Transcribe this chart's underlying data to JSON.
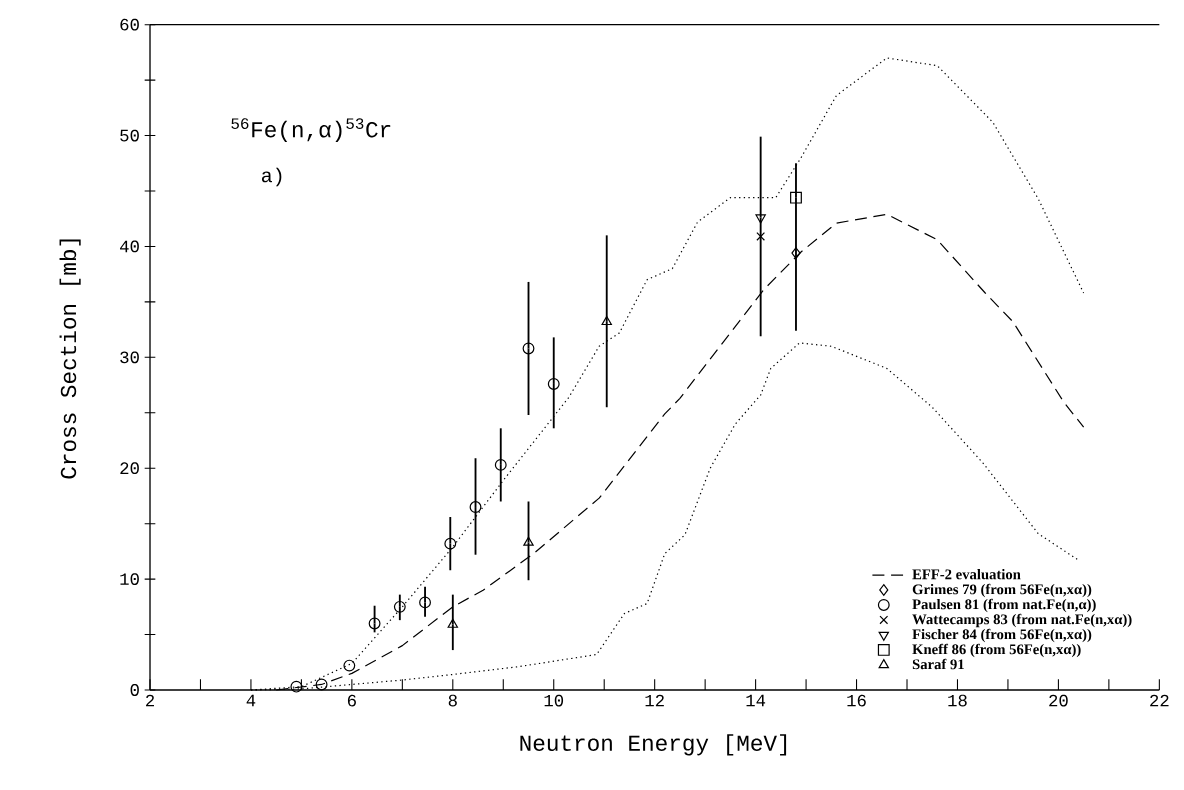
{
  "chart_data": {
    "type": "line",
    "xlabel": "Neutron Energy [MeV]",
    "ylabel": "Cross Section [mb]",
    "xlim": [
      2,
      22
    ],
    "ylim": [
      0,
      60
    ],
    "xticks": [
      2,
      {
        "value": 3,
        "label": null
      },
      4,
      {
        "value": 5,
        "label": null
      },
      6,
      {
        "value": 7,
        "label": null
      },
      8,
      {
        "value": 9,
        "label": null
      },
      10,
      {
        "value": 11,
        "label": null
      },
      12,
      {
        "value": 13,
        "label": null
      },
      14,
      {
        "value": 15,
        "label": null
      },
      16,
      {
        "value": 17,
        "label": null
      },
      18,
      {
        "value": 19,
        "label": null
      },
      20,
      {
        "value": 21,
        "label": null
      },
      22
    ],
    "yticks": [
      0,
      {
        "value": 5,
        "label": null
      },
      10,
      {
        "value": 15,
        "label": null
      },
      20,
      {
        "value": 25,
        "label": null
      },
      30,
      {
        "value": 35,
        "label": null
      },
      40,
      {
        "value": 45,
        "label": null
      },
      50,
      {
        "value": 55,
        "label": null
      },
      60
    ],
    "legend": "bottom right",
    "annotations": [
      "$^{56}$Fe(n,α)$^{53}$Cr",
      "a)"
    ],
    "series": [
      {
        "name": "EFF-2 evaluation",
        "color": "#000000",
        "line_style": "dashed",
        "x": [
          4.5,
          5.4,
          6,
          7,
          8,
          8.6,
          9.6,
          10.9,
          12.2,
          12.5,
          14.16,
          14.9,
          15.6,
          16.6,
          17.6,
          18.55,
          19.1,
          20.1,
          20.5
        ],
        "values": [
          0,
          0.5,
          1.5,
          4,
          7.5,
          9,
          12.3,
          17.3,
          24.9,
          26.3,
          36.1,
          39.5,
          42.1,
          42.9,
          40.6,
          35.8,
          33.2,
          26,
          23.7
        ]
      },
      {
        "color": "#000000",
        "line_style": "dotted",
        "x": [
          4,
          5,
          6,
          7,
          8,
          9,
          10.3,
          10.9,
          11.3,
          11.85,
          12.35,
          12.85,
          13.5,
          14.4,
          14.9,
          15.6,
          16.6,
          17.6,
          18.7,
          19.6,
          20.5
        ],
        "values": [
          0,
          0.3,
          2.4,
          7.5,
          12.9,
          18.9,
          26.4,
          31,
          32.2,
          37,
          38,
          42.2,
          44.4,
          44.4,
          48,
          53.6,
          57,
          56.3,
          51.2,
          44.3,
          35.8
        ]
      },
      {
        "color": "#000000",
        "line_style": "dotted",
        "x": [
          4,
          5,
          6,
          7,
          8,
          9.3,
          10.85,
          11.4,
          11.85,
          12.2,
          12.6,
          13.1,
          13.6,
          14.1,
          14.3,
          14.87,
          15.5,
          16.6,
          17.5,
          18.5,
          19.6,
          20.4
        ],
        "values": [
          0,
          0.1,
          0.5,
          0.9,
          1.4,
          2.1,
          3.2,
          6.9,
          7.8,
          12.3,
          14,
          20,
          24,
          26.6,
          29,
          31.3,
          31,
          29,
          25.5,
          20.5,
          14.1,
          11.7
        ]
      },
      {
        "type": "scatter",
        "name": "Grimes 79 (from 56Fe(n,xα))",
        "color": "#000000",
        "marker": "diamond",
        "x": [
          14.8
        ],
        "values": [
          39.4
        ]
      },
      {
        "type": "scatter",
        "name": "Paulsen 81 (from nat.Fe(n,α))",
        "color": "#000000",
        "marker": "circle",
        "x": [
          4.9,
          5.4,
          5.95,
          6.45,
          6.95,
          7.45,
          7.95,
          8.45,
          8.95,
          9.5,
          10
        ],
        "values": [
          0.3,
          0.5,
          2.2,
          6,
          7.5,
          7.9,
          13.2,
          16.5,
          20.3,
          30.8,
          27.6
        ],
        "errors": [
          null,
          null,
          null,
          [
            5.2,
            7.6
          ],
          [
            6.3,
            8.6
          ],
          [
            6.6,
            9.3
          ],
          [
            10.8,
            15.6
          ],
          [
            12.2,
            20.9
          ],
          [
            17,
            23.6
          ],
          [
            24.8,
            36.8
          ],
          [
            23.6,
            31.8
          ]
        ]
      },
      {
        "type": "scatter",
        "name": "Wattecamps 83 (from nat.Fe(n,xα))",
        "color": "#000000",
        "marker": "cross",
        "x": [
          14.1
        ],
        "values": [
          40.9
        ]
      },
      {
        "type": "scatter",
        "name": "Fischer 84 (from 56Fe(n,xα))",
        "color": "#000000",
        "marker": "triangle-down",
        "x": [
          14.1
        ],
        "values": [
          42.6
        ],
        "errors": [
          [
            31.9,
            49.9
          ]
        ]
      },
      {
        "type": "scatter",
        "name": "Kneff 86 (from 56Fe(n,xα))",
        "color": "#000000",
        "marker": "square",
        "x": [
          14.8
        ],
        "values": [
          44.4
        ],
        "errors": [
          [
            32.4,
            47.5
          ]
        ]
      },
      {
        "type": "scatter",
        "name": "Saraf 91",
        "color": "#000000",
        "marker": "triangle",
        "x": [
          8,
          9.5,
          11.05
        ],
        "values": [
          5.9,
          13.3,
          33.2
        ],
        "errors": [
          [
            3.6,
            8.6
          ],
          [
            9.9,
            17
          ],
          [
            25.5,
            41
          ]
        ]
      }
    ]
  }
}
